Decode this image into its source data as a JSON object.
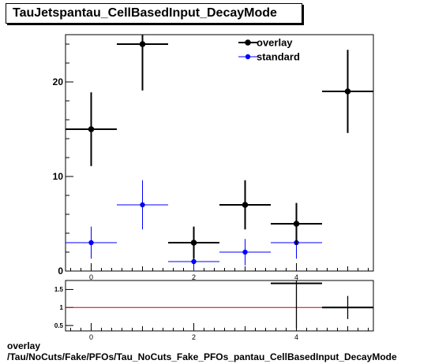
{
  "title": "TauJetspantau_CellBasedInput_DecayMode",
  "footer": {
    "line1": "overlay",
    "line2": "/Tau/NoCuts/Fake/PFOs/Tau_NoCuts_Fake_PFOs_pantau_CellBasedInput_DecayMode"
  },
  "colors": {
    "overlay": "#000000",
    "standard": "#0000ff",
    "ratio_line": "#cc0000"
  },
  "chart_data": [
    {
      "type": "scatter",
      "title": "TauJetspantau_CellBasedInput_DecayMode",
      "xlim": [
        -0.5,
        5.5
      ],
      "ylim": [
        0,
        25
      ],
      "yticks": [
        0,
        10,
        20
      ],
      "xticks": [
        0,
        2,
        4
      ],
      "legend": "top-right",
      "series": [
        {
          "name": "overlay",
          "x": [
            0,
            1,
            2,
            3,
            4,
            5
          ],
          "y": [
            15,
            24,
            3,
            7,
            5,
            19
          ],
          "yerr": [
            3.9,
            4.9,
            1.7,
            2.6,
            2.2,
            4.4
          ]
        },
        {
          "name": "standard",
          "x": [
            0,
            1,
            2,
            3,
            4
          ],
          "y": [
            3,
            7,
            1,
            2,
            3
          ],
          "yerr": [
            1.7,
            2.6,
            1.0,
            1.4,
            1.7
          ]
        }
      ]
    },
    {
      "type": "scatter",
      "xlim": [
        -0.5,
        5.5
      ],
      "ylim": [
        0.35,
        1.75
      ],
      "yticks": [
        0.5,
        1,
        1.5
      ],
      "xticks": [
        0,
        2,
        4
      ],
      "reference_line": 1,
      "series": [
        {
          "x": [
            4,
            5
          ],
          "y": [
            1.67,
            1.0
          ],
          "yerr": [
            1.25,
            0.32
          ]
        }
      ]
    }
  ]
}
